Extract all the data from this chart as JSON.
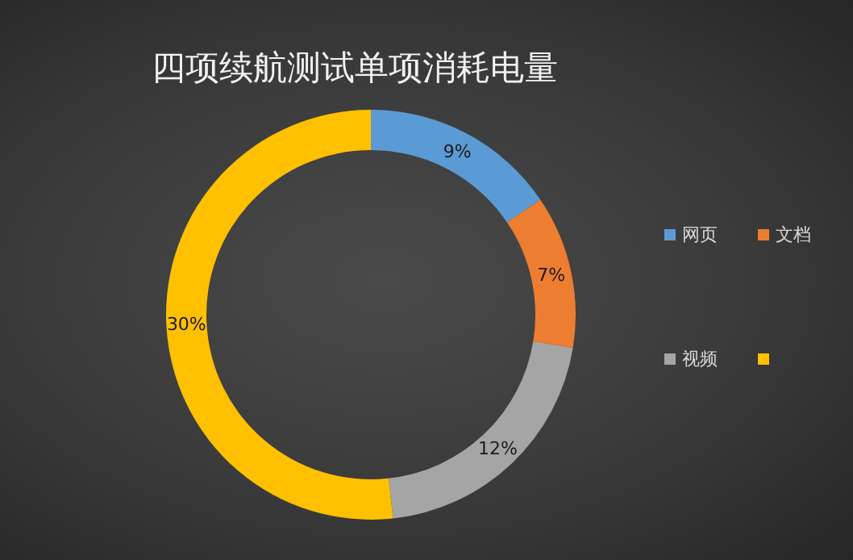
{
  "chart_data": {
    "type": "donut",
    "title": "四项续航测试单项消耗电量",
    "categories": [
      "网页",
      "文档",
      "视频",
      null
    ],
    "values": [
      9,
      7,
      12,
      30
    ],
    "value_labels": [
      "9%",
      "7%",
      "12%",
      "30%"
    ],
    "colors": [
      "#5b9bd5",
      "#ed7d31",
      "#a5a5a5",
      "#ffc000"
    ],
    "legend": "right"
  }
}
